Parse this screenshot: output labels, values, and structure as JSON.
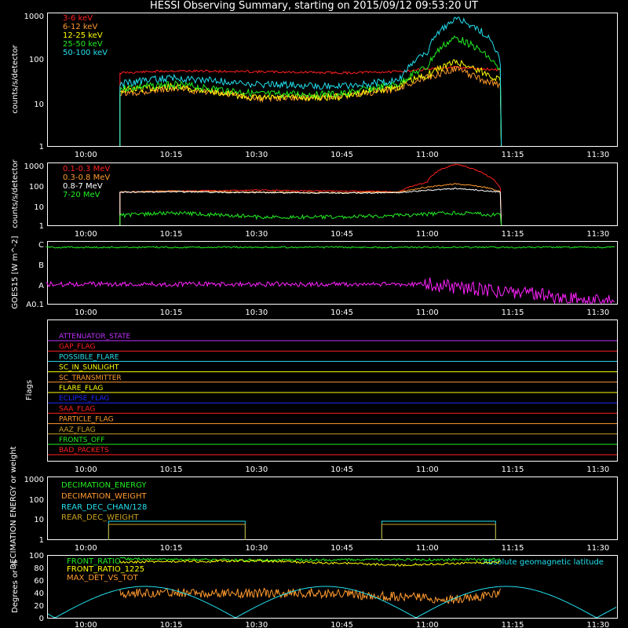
{
  "title": "HESSI Observing Summary, starting on 2015/09/12 09:53:20 UT",
  "time_ticks": [
    "10:00",
    "10:15",
    "10:30",
    "10:45",
    "11:00",
    "11:15",
    "11:30"
  ],
  "chart_data": [
    {
      "type": "line",
      "ylabel": "counts/s/detector",
      "yscale": "log",
      "ylim": [
        1,
        1000
      ],
      "y_ticks": [
        "1",
        "10",
        "100",
        "1000"
      ],
      "time_range": [
        "09:53:20",
        "11:33:20"
      ],
      "series": [
        {
          "name": "3-6 keV",
          "color": "#ff2020",
          "points": [
            [
              "10:06",
              45
            ],
            [
              "10:15",
              50
            ],
            [
              "10:30",
              48
            ],
            [
              "10:45",
              45
            ],
            [
              "10:55",
              48
            ],
            [
              "11:00",
              55
            ],
            [
              "11:05",
              60
            ],
            [
              "11:10",
              55
            ],
            [
              "11:13",
              52
            ]
          ]
        },
        {
          "name": "6-12 keV",
          "color": "#ff9a2e",
          "points": [
            [
              "10:06",
              15
            ],
            [
              "10:15",
              20
            ],
            [
              "10:30",
              12
            ],
            [
              "10:45",
              13
            ],
            [
              "10:55",
              20
            ],
            [
              "11:00",
              35
            ],
            [
              "11:05",
              55
            ],
            [
              "11:10",
              30
            ],
            [
              "11:13",
              22
            ]
          ]
        },
        {
          "name": "12-25 keV",
          "color": "#ffff00",
          "points": [
            [
              "10:06",
              18
            ],
            [
              "10:15",
              22
            ],
            [
              "10:30",
              12
            ],
            [
              "10:45",
              13
            ],
            [
              "10:55",
              22
            ],
            [
              "11:00",
              40
            ],
            [
              "11:05",
              80
            ],
            [
              "11:10",
              45
            ],
            [
              "11:13",
              30
            ]
          ]
        },
        {
          "name": "25-50 keV",
          "color": "#22ee22",
          "points": [
            [
              "10:06",
              20
            ],
            [
              "10:15",
              25
            ],
            [
              "10:30",
              15
            ],
            [
              "10:45",
              15
            ],
            [
              "10:55",
              25
            ],
            [
              "11:00",
              60
            ],
            [
              "11:05",
              280
            ],
            [
              "11:10",
              120
            ],
            [
              "11:13",
              40
            ]
          ]
        },
        {
          "name": "50-100 keV",
          "color": "#22e0ee",
          "points": [
            [
              "10:06",
              25
            ],
            [
              "10:15",
              35
            ],
            [
              "10:30",
              25
            ],
            [
              "10:45",
              22
            ],
            [
              "10:55",
              30
            ],
            [
              "11:00",
              120
            ],
            [
              "11:05",
              750
            ],
            [
              "11:10",
              350
            ],
            [
              "11:13",
              50
            ]
          ]
        }
      ]
    },
    {
      "type": "line",
      "ylabel": "counts/s/detector",
      "yscale": "log",
      "ylim": [
        1,
        1000
      ],
      "y_ticks": [
        "1",
        "10",
        "100",
        "1000"
      ],
      "series": [
        {
          "name": "0.1-0.3 MeV",
          "color": "#ff2020",
          "points": [
            [
              "10:06",
              40
            ],
            [
              "10:15",
              45
            ],
            [
              "10:30",
              50
            ],
            [
              "10:45",
              45
            ],
            [
              "10:55",
              42
            ],
            [
              "11:00",
              120
            ],
            [
              "11:05",
              900
            ],
            [
              "11:10",
              300
            ],
            [
              "11:13",
              45
            ]
          ]
        },
        {
          "name": "0.3-0.8 MeV",
          "color": "#ff9a2e",
          "points": [
            [
              "10:06",
              40
            ],
            [
              "10:15",
              45
            ],
            [
              "10:30",
              40
            ],
            [
              "10:45",
              38
            ],
            [
              "10:55",
              40
            ],
            [
              "11:00",
              70
            ],
            [
              "11:05",
              100
            ],
            [
              "11:10",
              70
            ],
            [
              "11:13",
              40
            ]
          ]
        },
        {
          "name": "0.8-7 MeV",
          "color": "#ffffff",
          "points": [
            [
              "10:06",
              40
            ],
            [
              "10:15",
              42
            ],
            [
              "10:30",
              38
            ],
            [
              "10:45",
              36
            ],
            [
              "10:55",
              38
            ],
            [
              "11:05",
              60
            ],
            [
              "11:13",
              40
            ]
          ]
        },
        {
          "name": "7-20 MeV",
          "color": "#22ee22",
          "points": [
            [
              "10:06",
              3
            ],
            [
              "10:15",
              4
            ],
            [
              "10:30",
              2.5
            ],
            [
              "10:45",
              2.5
            ],
            [
              "10:55",
              3
            ],
            [
              "11:05",
              4
            ],
            [
              "11:13",
              3
            ]
          ]
        }
      ]
    },
    {
      "type": "line",
      "ylabel": "GOES15 [W m^-2]",
      "y_ticks": [
        "A0.1",
        "A",
        "B",
        "C"
      ],
      "series": [
        {
          "color": "#22ee22",
          "points": [
            [
              "09:53",
              "C"
            ],
            [
              "11:33",
              "C"
            ]
          ]
        },
        {
          "color": "#ff22ff",
          "points": [
            [
              "09:53",
              "A"
            ],
            [
              "11:00",
              "A"
            ],
            [
              "11:33",
              "A0.1"
            ]
          ]
        }
      ]
    },
    {
      "type": "line",
      "ylabel": "Flags",
      "flags": [
        {
          "name": "ATTENUATOR_STATE",
          "color": "#c030ff"
        },
        {
          "name": "GAP_FLAG",
          "color": "#ff2020"
        },
        {
          "name": "POSSIBLE_FLARE",
          "color": "#22e0ee"
        },
        {
          "name": "SC_IN_SUNLIGHT",
          "color": "#ffff00"
        },
        {
          "name": "SC_TRANSMITTER",
          "color": "#ff9a2e"
        },
        {
          "name": "FLARE_FLAG",
          "color": "#ffff00"
        },
        {
          "name": "ECLIPSE_FLAG",
          "color": "#1c28ff"
        },
        {
          "name": "SAA_FLAG",
          "color": "#ff2020"
        },
        {
          "name": "PARTICLE_FLAG",
          "color": "#ff9a2e"
        },
        {
          "name": "AAZ_FLAG",
          "color": "#c8a020"
        },
        {
          "name": "FRONTS_OFF",
          "color": "#22ee22"
        },
        {
          "name": "BAD_PACKETS",
          "color": "#ff2020"
        }
      ]
    },
    {
      "type": "line",
      "ylabel": "DECIMATION ENERGY or weight",
      "yscale": "log",
      "ylim": [
        1,
        1000
      ],
      "y_ticks": [
        "1",
        "10",
        "100",
        "1000"
      ],
      "series": [
        {
          "name": "DECIMATION_ENERGY",
          "color": "#22ee22"
        },
        {
          "name": "DECIMATION_WEIGHT",
          "color": "#ff9a2e"
        },
        {
          "name": "REAR_DEC_CHAN/128",
          "color": "#22e0ee"
        },
        {
          "name": "REAR_DEC_WEIGHT",
          "color": "#c8a020"
        }
      ]
    },
    {
      "type": "line",
      "ylabel": "Degrees or %",
      "ylim": [
        0,
        100
      ],
      "y_ticks": [
        "0",
        "20",
        "40",
        "60",
        "80",
        "100"
      ],
      "annotation": "Absolute geomagnetic latitude",
      "series": [
        {
          "name": "FRONT_RATIO",
          "color": "#22ee22"
        },
        {
          "name": "FRONT_RATIO_1225",
          "color": "#ffff00"
        },
        {
          "name": "MAX_DET_VS_TOT",
          "color": "#ff9a2e"
        }
      ]
    }
  ]
}
